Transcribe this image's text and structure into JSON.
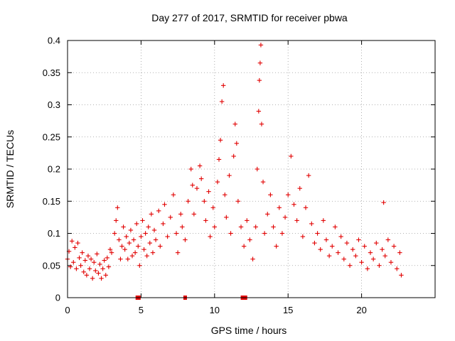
{
  "chart_data": {
    "type": "scatter",
    "title": "Day 277 of 2017, SRMTID for receiver pbwa",
    "xlabel": "GPS time / hours",
    "ylabel": "SRMTID / TECUs",
    "xlim": [
      0,
      25
    ],
    "ylim": [
      0,
      0.4
    ],
    "x_ticks": [
      0,
      5,
      10,
      15,
      20
    ],
    "x_tick_labels": [
      "0",
      "5",
      "10",
      "15",
      "20"
    ],
    "y_ticks": [
      0,
      0.05,
      0.1,
      0.15,
      0.2,
      0.25,
      0.3,
      0.35,
      0.4
    ],
    "y_tick_labels": [
      "0",
      "0.05",
      "0.1",
      "0.15",
      "0.2",
      "0.25",
      "0.3",
      "0.35",
      "0.4"
    ],
    "grid": true,
    "marker": "plus",
    "color": "#e10000",
    "series": [
      {
        "name": "SRMTID",
        "points": [
          [
            0.0,
            0.06
          ],
          [
            0.1,
            0.072
          ],
          [
            0.2,
            0.048
          ],
          [
            0.3,
            0.088
          ],
          [
            0.4,
            0.055
          ],
          [
            0.5,
            0.078
          ],
          [
            0.6,
            0.045
          ],
          [
            0.7,
            0.085
          ],
          [
            0.8,
            0.062
          ],
          [
            0.9,
            0.05
          ],
          [
            1.0,
            0.07
          ],
          [
            1.1,
            0.04
          ],
          [
            1.2,
            0.058
          ],
          [
            1.3,
            0.035
          ],
          [
            1.4,
            0.065
          ],
          [
            1.5,
            0.045
          ],
          [
            1.6,
            0.06
          ],
          [
            1.7,
            0.03
          ],
          [
            1.8,
            0.055
          ],
          [
            1.9,
            0.042
          ],
          [
            2.0,
            0.068
          ],
          [
            2.1,
            0.038
          ],
          [
            2.2,
            0.052
          ],
          [
            2.3,
            0.03
          ],
          [
            2.4,
            0.045
          ],
          [
            2.5,
            0.058
          ],
          [
            2.6,
            0.035
          ],
          [
            2.7,
            0.062
          ],
          [
            2.8,
            0.048
          ],
          [
            2.9,
            0.075
          ],
          [
            3.0,
            0.07
          ],
          [
            3.2,
            0.1
          ],
          [
            3.3,
            0.12
          ],
          [
            3.4,
            0.14
          ],
          [
            3.5,
            0.09
          ],
          [
            3.6,
            0.06
          ],
          [
            3.7,
            0.08
          ],
          [
            3.8,
            0.11
          ],
          [
            3.9,
            0.075
          ],
          [
            4.0,
            0.095
          ],
          [
            4.1,
            0.06
          ],
          [
            4.2,
            0.085
          ],
          [
            4.3,
            0.105
          ],
          [
            4.4,
            0.065
          ],
          [
            4.5,
            0.09
          ],
          [
            4.6,
            0.07
          ],
          [
            4.7,
            0.115
          ],
          [
            4.8,
            0.08
          ],
          [
            4.9,
            0.05
          ],
          [
            5.0,
            0.095
          ],
          [
            5.1,
            0.12
          ],
          [
            5.2,
            0.075
          ],
          [
            5.3,
            0.1
          ],
          [
            5.4,
            0.065
          ],
          [
            5.5,
            0.11
          ],
          [
            5.6,
            0.085
          ],
          [
            5.7,
            0.13
          ],
          [
            5.8,
            0.07
          ],
          [
            5.9,
            0.105
          ],
          [
            6.0,
            0.09
          ],
          [
            6.2,
            0.135
          ],
          [
            6.3,
            0.08
          ],
          [
            6.5,
            0.115
          ],
          [
            6.6,
            0.145
          ],
          [
            6.8,
            0.095
          ],
          [
            7.0,
            0.125
          ],
          [
            7.2,
            0.16
          ],
          [
            7.4,
            0.1
          ],
          [
            7.5,
            0.07
          ],
          [
            7.7,
            0.13
          ],
          [
            7.8,
            0.11
          ],
          [
            8.0,
            0.09
          ],
          [
            8.2,
            0.15
          ],
          [
            8.4,
            0.2
          ],
          [
            8.5,
            0.175
          ],
          [
            8.6,
            0.13
          ],
          [
            8.8,
            0.17
          ],
          [
            9.0,
            0.205
          ],
          [
            9.1,
            0.185
          ],
          [
            9.3,
            0.15
          ],
          [
            9.4,
            0.12
          ],
          [
            9.6,
            0.165
          ],
          [
            9.7,
            0.095
          ],
          [
            9.9,
            0.14
          ],
          [
            10.0,
            0.11
          ],
          [
            10.2,
            0.18
          ],
          [
            10.3,
            0.215
          ],
          [
            10.4,
            0.245
          ],
          [
            10.5,
            0.305
          ],
          [
            10.6,
            0.33
          ],
          [
            10.7,
            0.16
          ],
          [
            10.8,
            0.125
          ],
          [
            11.0,
            0.19
          ],
          [
            11.1,
            0.1
          ],
          [
            11.3,
            0.22
          ],
          [
            11.4,
            0.27
          ],
          [
            11.5,
            0.24
          ],
          [
            11.6,
            0.15
          ],
          [
            11.8,
            0.11
          ],
          [
            12.0,
            0.08
          ],
          [
            12.2,
            0.12
          ],
          [
            12.4,
            0.09
          ],
          [
            12.6,
            0.06
          ],
          [
            12.8,
            0.11
          ],
          [
            12.9,
            0.2
          ],
          [
            13.0,
            0.29
          ],
          [
            13.05,
            0.338
          ],
          [
            13.1,
            0.365
          ],
          [
            13.15,
            0.393
          ],
          [
            13.2,
            0.27
          ],
          [
            13.3,
            0.18
          ],
          [
            13.4,
            0.1
          ],
          [
            13.6,
            0.13
          ],
          [
            13.8,
            0.16
          ],
          [
            14.0,
            0.11
          ],
          [
            14.2,
            0.08
          ],
          [
            14.4,
            0.14
          ],
          [
            14.6,
            0.1
          ],
          [
            14.8,
            0.125
          ],
          [
            15.0,
            0.16
          ],
          [
            15.2,
            0.22
          ],
          [
            15.4,
            0.145
          ],
          [
            15.6,
            0.12
          ],
          [
            15.8,
            0.17
          ],
          [
            16.0,
            0.095
          ],
          [
            16.2,
            0.14
          ],
          [
            16.4,
            0.19
          ],
          [
            16.6,
            0.115
          ],
          [
            16.8,
            0.085
          ],
          [
            17.0,
            0.1
          ],
          [
            17.2,
            0.075
          ],
          [
            17.4,
            0.12
          ],
          [
            17.6,
            0.09
          ],
          [
            17.8,
            0.065
          ],
          [
            18.0,
            0.08
          ],
          [
            18.2,
            0.11
          ],
          [
            18.4,
            0.07
          ],
          [
            18.6,
            0.095
          ],
          [
            18.8,
            0.06
          ],
          [
            19.0,
            0.085
          ],
          [
            19.2,
            0.05
          ],
          [
            19.4,
            0.075
          ],
          [
            19.6,
            0.065
          ],
          [
            19.8,
            0.09
          ],
          [
            20.0,
            0.055
          ],
          [
            20.2,
            0.08
          ],
          [
            20.4,
            0.045
          ],
          [
            20.6,
            0.07
          ],
          [
            20.8,
            0.06
          ],
          [
            21.0,
            0.085
          ],
          [
            21.2,
            0.05
          ],
          [
            21.4,
            0.075
          ],
          [
            21.5,
            0.148
          ],
          [
            21.6,
            0.065
          ],
          [
            21.8,
            0.09
          ],
          [
            22.0,
            0.055
          ],
          [
            22.2,
            0.08
          ],
          [
            22.4,
            0.045
          ],
          [
            22.6,
            0.07
          ],
          [
            22.7,
            0.035
          ]
        ]
      },
      {
        "name": "zero values",
        "points": [
          [
            4.75,
            0
          ],
          [
            4.8,
            0
          ],
          [
            4.85,
            0
          ],
          [
            8.0,
            0
          ],
          [
            11.9,
            0
          ],
          [
            12.0,
            0
          ],
          [
            12.1,
            0
          ]
        ]
      }
    ]
  }
}
